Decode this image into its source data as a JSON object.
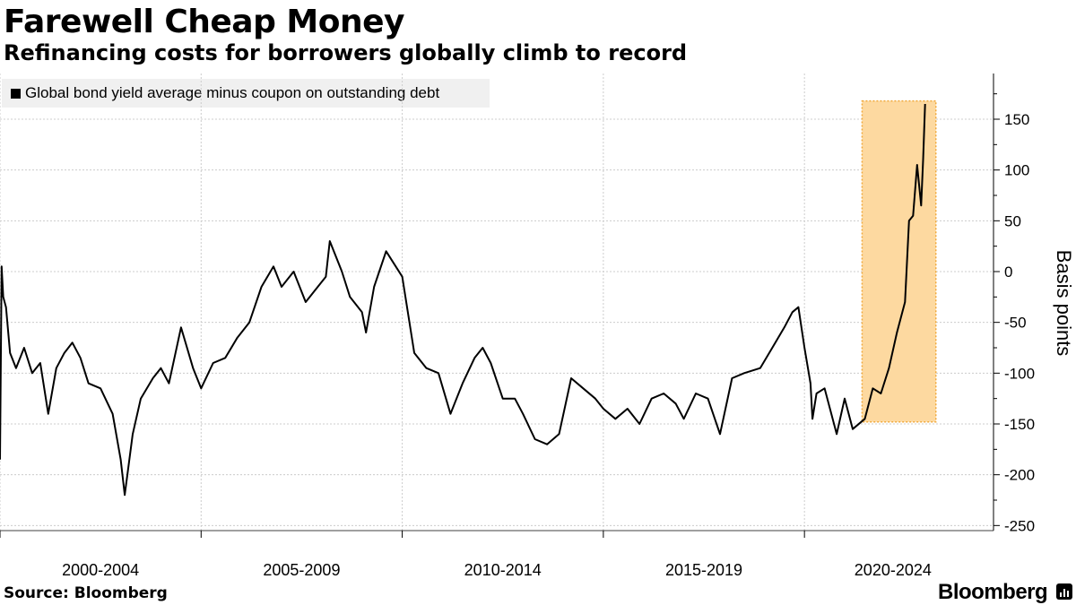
{
  "title": "Farewell Cheap Money",
  "subtitle": "Refinancing costs for borrowers globally climb to record",
  "source": "Source: Bloomberg",
  "brand": "Bloomberg",
  "colors": {
    "line": "#000000",
    "highlight_fill": "#fdd9a0",
    "highlight_border": "#f0a93c",
    "grid": "#cccccc",
    "legend_bg": "#f0f0f0"
  },
  "chart_data": {
    "type": "line",
    "title": "Farewell Cheap Money",
    "subtitle": "Refinancing costs for borrowers globally climb to record",
    "xlabel": "",
    "ylabel": "Basis points",
    "y_axis_position": "right",
    "ylim": [
      -255,
      195
    ],
    "yticks": [
      150,
      100,
      50,
      0,
      -50,
      -100,
      -150,
      -200,
      -250
    ],
    "xlim": [
      2000.0,
      2024.7
    ],
    "x_tick_boundaries": [
      2000,
      2005,
      2010,
      2015,
      2020
    ],
    "x_category_labels": [
      {
        "label": "2000-2004",
        "center": 2002.5
      },
      {
        "label": "2005-2009",
        "center": 2007.5
      },
      {
        "label": "2010-2014",
        "center": 2012.5
      },
      {
        "label": "2015-2019",
        "center": 2017.5
      },
      {
        "label": "2020-2024",
        "center": 2022.2
      }
    ],
    "grid": true,
    "legend_placement": "top-left",
    "highlight": {
      "x": [
        2021.7,
        2023.0
      ],
      "y": [
        -148,
        168
      ]
    },
    "series": [
      {
        "name": "Global bond yield average minus coupon on outstanding debt",
        "x": [
          2000.0,
          2000.04,
          2000.08,
          2000.15,
          2000.25,
          2000.4,
          2000.6,
          2000.8,
          2001.0,
          2001.2,
          2001.4,
          2001.6,
          2001.8,
          2002.0,
          2002.2,
          2002.5,
          2002.8,
          2003.0,
          2003.1,
          2003.3,
          2003.5,
          2003.8,
          2004.0,
          2004.2,
          2004.5,
          2004.8,
          2005.0,
          2005.3,
          2005.6,
          2005.9,
          2006.2,
          2006.5,
          2006.8,
          2007.0,
          2007.3,
          2007.6,
          2007.9,
          2008.1,
          2008.2,
          2008.5,
          2008.7,
          2009.0,
          2009.1,
          2009.3,
          2009.6,
          2010.0,
          2010.3,
          2010.6,
          2010.9,
          2011.2,
          2011.5,
          2011.8,
          2012.0,
          2012.2,
          2012.5,
          2012.8,
          2013.0,
          2013.3,
          2013.6,
          2013.9,
          2014.2,
          2014.5,
          2014.8,
          2015.0,
          2015.3,
          2015.6,
          2015.9,
          2016.2,
          2016.5,
          2016.8,
          2017.0,
          2017.3,
          2017.6,
          2017.9,
          2018.2,
          2018.5,
          2018.9,
          2019.2,
          2019.5,
          2019.7,
          2019.85,
          2020.0,
          2020.15,
          2020.2,
          2020.3,
          2020.5,
          2020.8,
          2021.0,
          2021.2,
          2021.5,
          2021.7,
          2021.9,
          2022.1,
          2022.3,
          2022.5,
          2022.6,
          2022.7,
          2022.8,
          2022.9,
          2022.95,
          2023.0
        ],
        "y": [
          -185,
          5,
          -25,
          -35,
          -80,
          -95,
          -75,
          -100,
          -90,
          -140,
          -95,
          -80,
          -70,
          -85,
          -110,
          -115,
          -140,
          -185,
          -220,
          -160,
          -125,
          -105,
          -95,
          -110,
          -55,
          -95,
          -115,
          -90,
          -85,
          -65,
          -50,
          -15,
          5,
          -15,
          0,
          -30,
          -15,
          -5,
          30,
          0,
          -25,
          -40,
          -60,
          -15,
          20,
          -5,
          -80,
          -95,
          -100,
          -140,
          -110,
          -85,
          -75,
          -90,
          -125,
          -125,
          -140,
          -165,
          -170,
          -160,
          -105,
          -115,
          -125,
          -135,
          -145,
          -135,
          -150,
          -125,
          -120,
          -130,
          -145,
          -120,
          -125,
          -160,
          -105,
          -100,
          -95,
          -75,
          -55,
          -40,
          -35,
          -75,
          -110,
          -145,
          -120,
          -115,
          -160,
          -125,
          -155,
          -145,
          -115,
          -120,
          -95,
          -60,
          -30,
          50,
          55,
          105,
          65,
          110,
          165
        ]
      }
    ]
  }
}
